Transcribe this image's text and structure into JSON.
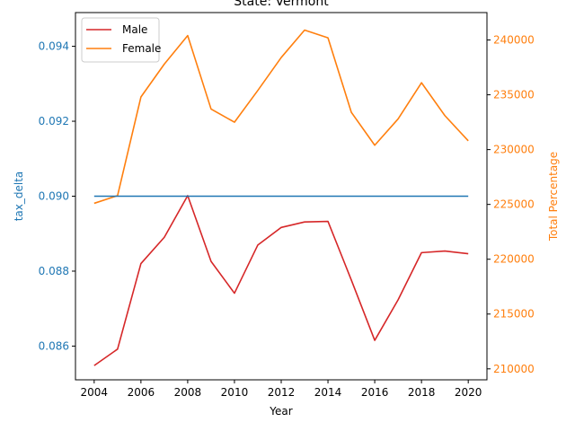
{
  "chart_data": {
    "type": "line",
    "title": "State: Vermont",
    "xlabel": "Year",
    "ylabel_left": "tax_delta",
    "ylabel_right": "Total Percentage",
    "x": [
      2004,
      2005,
      2006,
      2007,
      2008,
      2009,
      2010,
      2011,
      2012,
      2013,
      2014,
      2015,
      2016,
      2017,
      2018,
      2019,
      2020
    ],
    "xlim": [
      2003.2,
      2020.8
    ],
    "xticks": [
      "2004",
      "2006",
      "2008",
      "2010",
      "2012",
      "2014",
      "2016",
      "2018",
      "2020"
    ],
    "ylim_left": [
      0.0851,
      0.0949
    ],
    "yticks_left": [
      "0.086",
      "0.088",
      "0.090",
      "0.092",
      "0.094"
    ],
    "ylim_right": [
      209000,
      242500
    ],
    "yticks_right": [
      "210000",
      "215000",
      "220000",
      "225000",
      "230000",
      "235000",
      "240000"
    ],
    "left_color": "#1f77b4",
    "right_color": "#ff7f0e",
    "grid": false,
    "legend_position": "top-left",
    "series": [
      {
        "name": "Male",
        "axis": "right",
        "color": "#d62728",
        "values": [
          210300,
          211800,
          219600,
          222000,
          225800,
          219800,
          216900,
          221300,
          222900,
          223400,
          223450,
          218100,
          212600,
          216300,
          220600,
          220750,
          220500
        ]
      },
      {
        "name": "Female",
        "axis": "right",
        "color": "#ff7f0e",
        "values": [
          225100,
          225800,
          234800,
          237800,
          240400,
          233700,
          232500,
          235400,
          238400,
          240900,
          240200,
          233400,
          230400,
          232800,
          236100,
          233100,
          230800
        ]
      },
      {
        "axis": "left",
        "color": "#1f77b4",
        "values": [
          0.09,
          0.09,
          0.09,
          0.09,
          0.09,
          0.09,
          0.09,
          0.09,
          0.09,
          0.09,
          0.09,
          0.09,
          0.09,
          0.09,
          0.09,
          0.09,
          0.09
        ]
      }
    ]
  }
}
